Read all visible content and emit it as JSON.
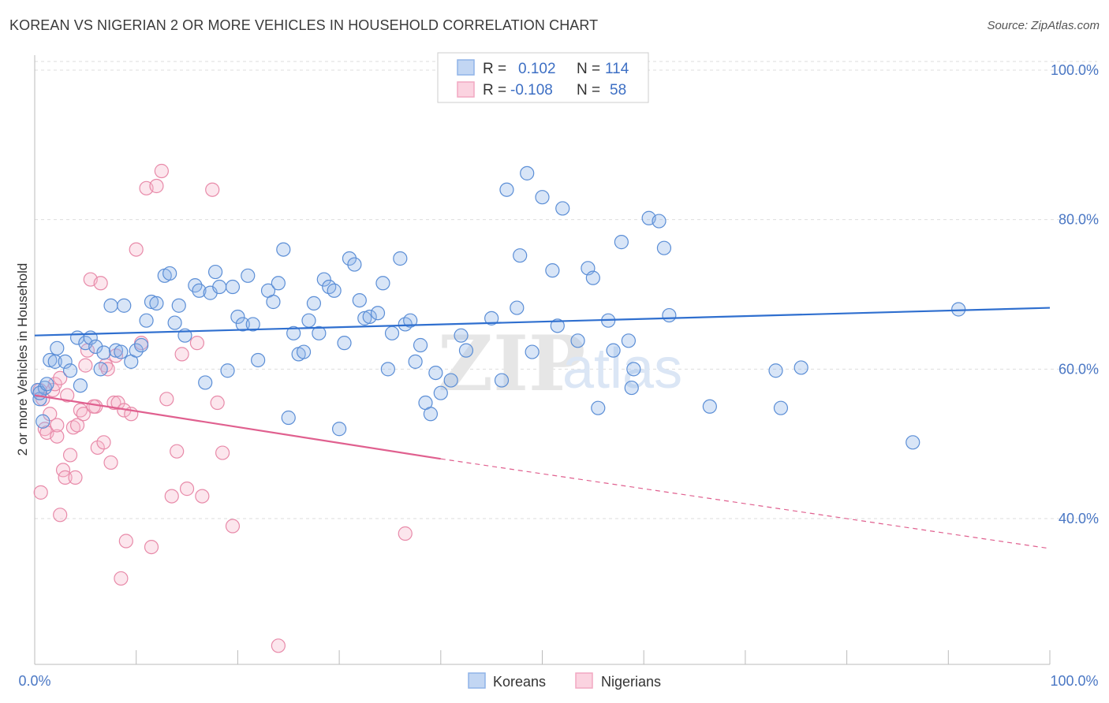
{
  "header": {
    "title": "KOREAN VS NIGERIAN 2 OR MORE VEHICLES IN HOUSEHOLD CORRELATION CHART",
    "source": "Source: ZipAtlas.com"
  },
  "watermark": {
    "part1": "ZIP",
    "part2": "atlas"
  },
  "legend": {
    "rows": [
      {
        "r_label": "R =",
        "r_value": "0.102",
        "n_label": "N =",
        "n_value": "114",
        "color": "#8fb4e8"
      },
      {
        "r_label": "R =",
        "r_value": "-0.108",
        "n_label": "N =",
        "n_value": "58",
        "color": "#f2a8c2"
      }
    ]
  },
  "bottom_legend": [
    {
      "label": "Koreans",
      "color": "#8fb4e8"
    },
    {
      "label": "Nigerians",
      "color": "#f2a8c2"
    }
  ],
  "colors": {
    "korean_fill": "#8fb4e8",
    "korean_stroke": "#5b8ed6",
    "korean_line": "#2f6fcf",
    "nigerian_fill": "#f5b8cc",
    "nigerian_stroke": "#e88aa9",
    "nigerian_line": "#e0608f",
    "tick_label": "#4a77c4",
    "grid": "#dddddd"
  },
  "chart_data": {
    "type": "scatter",
    "title": "KOREAN VS NIGERIAN 2 OR MORE VEHICLES IN HOUSEHOLD CORRELATION CHART",
    "xlabel": "",
    "ylabel": "2 or more Vehicles in Household",
    "xlim": [
      0,
      100
    ],
    "ylim": [
      20.5,
      102
    ],
    "x_tick_labels": [
      "0.0%",
      "100.0%"
    ],
    "y_ticks": [
      40,
      60,
      80,
      100
    ],
    "y_tick_labels": [
      "40.0%",
      "60.0%",
      "80.0%",
      "100.0%"
    ],
    "grid": "horizontal dashed",
    "legend_position": "top-center",
    "series": [
      {
        "name": "Koreans",
        "R": 0.102,
        "N": 114,
        "trend": {
          "x": [
            0,
            100
          ],
          "y": [
            64.5,
            68.2
          ]
        },
        "points": [
          [
            0.3,
            57.2
          ],
          [
            0.5,
            56.0
          ],
          [
            0.8,
            53.0
          ],
          [
            1.0,
            57.5
          ],
          [
            1.5,
            61.2
          ],
          [
            2.0,
            61.0
          ],
          [
            2.2,
            62.8
          ],
          [
            3.0,
            61.0
          ],
          [
            3.5,
            59.8
          ],
          [
            4.2,
            64.2
          ],
          [
            4.5,
            57.8
          ],
          [
            5.0,
            63.5
          ],
          [
            5.5,
            64.2
          ],
          [
            6.0,
            63.0
          ],
          [
            6.5,
            60.0
          ],
          [
            6.8,
            62.2
          ],
          [
            7.5,
            68.5
          ],
          [
            8.0,
            62.5
          ],
          [
            8.5,
            62.3
          ],
          [
            8.8,
            68.5
          ],
          [
            9.5,
            61.0
          ],
          [
            10.0,
            62.5
          ],
          [
            10.5,
            63.2
          ],
          [
            11.0,
            66.5
          ],
          [
            11.5,
            69.0
          ],
          [
            12.0,
            68.8
          ],
          [
            12.8,
            72.5
          ],
          [
            13.3,
            72.8
          ],
          [
            13.8,
            66.2
          ],
          [
            14.2,
            68.5
          ],
          [
            14.8,
            64.5
          ],
          [
            15.8,
            71.2
          ],
          [
            16.2,
            70.5
          ],
          [
            16.8,
            58.2
          ],
          [
            17.3,
            70.2
          ],
          [
            17.8,
            73.0
          ],
          [
            18.2,
            71.0
          ],
          [
            19.0,
            59.8
          ],
          [
            19.5,
            71.0
          ],
          [
            20.0,
            67.0
          ],
          [
            20.5,
            66.0
          ],
          [
            21.0,
            72.5
          ],
          [
            21.5,
            66.0
          ],
          [
            22.0,
            61.2
          ],
          [
            23.0,
            70.5
          ],
          [
            23.5,
            69.0
          ],
          [
            24.0,
            71.5
          ],
          [
            24.5,
            76.0
          ],
          [
            25.0,
            53.5
          ],
          [
            25.5,
            64.8
          ],
          [
            26.0,
            62.0
          ],
          [
            26.5,
            62.3
          ],
          [
            27.0,
            66.5
          ],
          [
            27.5,
            68.8
          ],
          [
            28.0,
            64.8
          ],
          [
            28.5,
            72.0
          ],
          [
            29.0,
            71.0
          ],
          [
            29.5,
            70.5
          ],
          [
            30.0,
            52.0
          ],
          [
            30.5,
            63.5
          ],
          [
            31.0,
            74.8
          ],
          [
            31.5,
            74.0
          ],
          [
            32.0,
            69.2
          ],
          [
            32.5,
            66.8
          ],
          [
            33.0,
            67.0
          ],
          [
            33.8,
            67.5
          ],
          [
            34.3,
            71.5
          ],
          [
            34.8,
            60.0
          ],
          [
            35.2,
            64.8
          ],
          [
            36.0,
            74.8
          ],
          [
            36.5,
            66.0
          ],
          [
            37.0,
            66.5
          ],
          [
            37.5,
            61.0
          ],
          [
            38.0,
            63.2
          ],
          [
            38.5,
            55.5
          ],
          [
            39.0,
            54.0
          ],
          [
            39.5,
            59.5
          ],
          [
            40.0,
            56.8
          ],
          [
            41.0,
            58.5
          ],
          [
            42.0,
            64.5
          ],
          [
            42.5,
            62.5
          ],
          [
            45.0,
            66.8
          ],
          [
            46.0,
            58.5
          ],
          [
            46.5,
            84.0
          ],
          [
            47.5,
            68.2
          ],
          [
            47.8,
            75.2
          ],
          [
            48.5,
            86.2
          ],
          [
            49.0,
            62.3
          ],
          [
            50.0,
            83.0
          ],
          [
            51.0,
            73.2
          ],
          [
            51.5,
            65.8
          ],
          [
            52.0,
            81.5
          ],
          [
            53.5,
            63.8
          ],
          [
            54.5,
            73.5
          ],
          [
            55.0,
            72.2
          ],
          [
            55.5,
            54.8
          ],
          [
            56.5,
            66.5
          ],
          [
            57.0,
            62.5
          ],
          [
            57.8,
            77.0
          ],
          [
            58.5,
            63.8
          ],
          [
            58.8,
            57.5
          ],
          [
            59.0,
            60.0
          ],
          [
            60.5,
            80.2
          ],
          [
            61.5,
            79.8
          ],
          [
            62.0,
            76.2
          ],
          [
            62.5,
            67.2
          ],
          [
            66.5,
            55.0
          ],
          [
            73.0,
            59.8
          ],
          [
            73.5,
            54.8
          ],
          [
            75.5,
            60.2
          ],
          [
            86.5,
            50.2
          ],
          [
            91.0,
            68.0
          ],
          [
            0.5,
            56.8
          ],
          [
            1.2,
            58.0
          ]
        ]
      },
      {
        "name": "Nigerians",
        "R": -0.108,
        "N": 58,
        "trend": {
          "x": [
            0,
            40
          ],
          "y": [
            56.5,
            48.0
          ]
        },
        "trend_dashed": {
          "x": [
            40,
            100
          ],
          "y": [
            48.0,
            36.0
          ]
        },
        "points": [
          [
            0.5,
            57.2
          ],
          [
            0.8,
            56.0
          ],
          [
            0.6,
            43.5
          ],
          [
            1.0,
            52.0
          ],
          [
            1.2,
            51.5
          ],
          [
            1.5,
            54.0
          ],
          [
            1.8,
            57.2
          ],
          [
            2.0,
            58.0
          ],
          [
            2.2,
            51.0
          ],
          [
            2.5,
            58.8
          ],
          [
            2.5,
            40.5
          ],
          [
            2.8,
            46.5
          ],
          [
            3.0,
            45.5
          ],
          [
            3.2,
            56.5
          ],
          [
            3.8,
            52.2
          ],
          [
            4.0,
            45.5
          ],
          [
            4.2,
            52.5
          ],
          [
            4.5,
            54.5
          ],
          [
            4.8,
            54.0
          ],
          [
            5.0,
            60.5
          ],
          [
            5.2,
            62.5
          ],
          [
            5.5,
            72.0
          ],
          [
            6.0,
            55.0
          ],
          [
            6.2,
            49.5
          ],
          [
            6.5,
            71.5
          ],
          [
            6.8,
            50.2
          ],
          [
            7.0,
            60.5
          ],
          [
            7.2,
            60.0
          ],
          [
            7.5,
            47.5
          ],
          [
            7.8,
            55.5
          ],
          [
            8.0,
            61.8
          ],
          [
            8.2,
            55.5
          ],
          [
            8.5,
            32.0
          ],
          [
            8.8,
            54.5
          ],
          [
            9.0,
            37.0
          ],
          [
            9.5,
            54.0
          ],
          [
            10.0,
            76.0
          ],
          [
            10.5,
            63.5
          ],
          [
            11.0,
            84.2
          ],
          [
            11.5,
            36.2
          ],
          [
            12.0,
            84.5
          ],
          [
            12.5,
            86.5
          ],
          [
            13.0,
            56.0
          ],
          [
            13.5,
            43.0
          ],
          [
            14.0,
            49.0
          ],
          [
            14.5,
            62.0
          ],
          [
            15.0,
            44.0
          ],
          [
            16.0,
            63.5
          ],
          [
            16.5,
            43.0
          ],
          [
            17.5,
            84.0
          ],
          [
            18.0,
            55.5
          ],
          [
            18.5,
            48.8
          ],
          [
            19.5,
            39.0
          ],
          [
            24.0,
            23.0
          ],
          [
            36.5,
            38.0
          ],
          [
            3.5,
            48.5
          ],
          [
            5.8,
            55.0
          ],
          [
            2.2,
            52.5
          ]
        ]
      }
    ]
  }
}
